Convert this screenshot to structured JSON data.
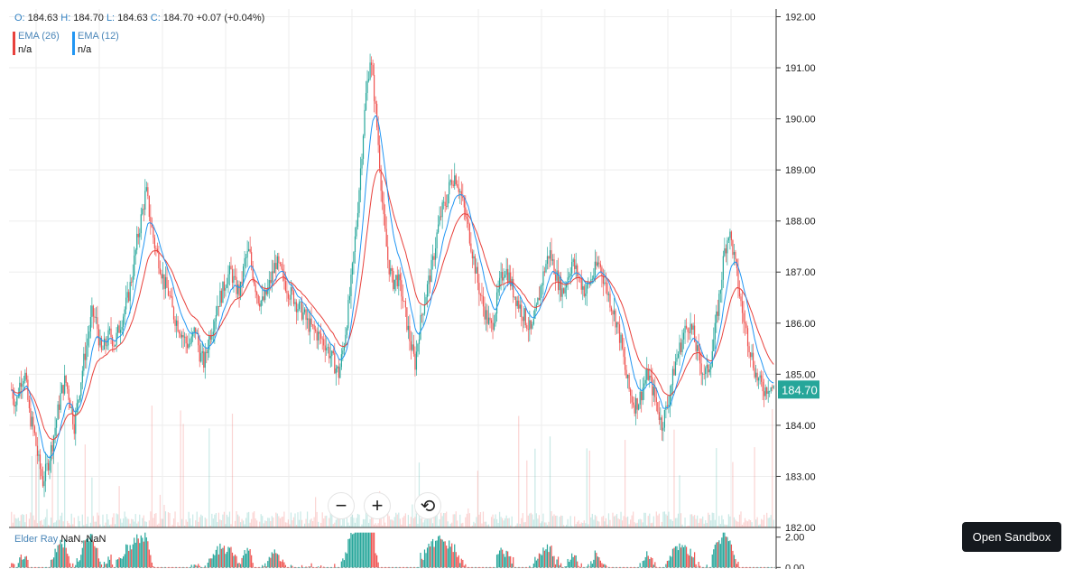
{
  "ohlc": {
    "o_label": "O:",
    "o_value": "184.63",
    "h_label": "H:",
    "h_value": "184.70",
    "l_label": "L:",
    "l_value": "184.63",
    "c_label": "C:",
    "c_value": "184.70",
    "change": "+0.07 (+0.04%)"
  },
  "legend": [
    {
      "name": "EMA (26)",
      "value": "n/a",
      "color": "#e8413c"
    },
    {
      "name": "EMA (12)",
      "value": "n/a",
      "color": "#2196f3"
    }
  ],
  "elder_ray": {
    "name": "Elder Ray",
    "value": "NaN, NaN"
  },
  "controls": {
    "zoom_out": "−",
    "zoom_in": "+",
    "reset": "⟲"
  },
  "sandbox_button": "Open Sandbox",
  "colors": {
    "up": "#26a69a",
    "down": "#ef5350",
    "ema26": "#e8413c",
    "ema12": "#2196f3",
    "last_price_bg": "#26a69a"
  },
  "chart_data": {
    "type": "candlestick",
    "price_axis": {
      "ticks": [
        "192.00",
        "191.00",
        "190.00",
        "189.00",
        "188.00",
        "187.00",
        "186.00",
        "185.00",
        "184.00",
        "183.00",
        "182.00"
      ],
      "range": [
        182,
        192.15
      ]
    },
    "elder_axis": {
      "ticks": [
        "2.00",
        "0.00"
      ],
      "range": [
        -0.1,
        2.4
      ]
    },
    "last_price": "184.70",
    "closes": [
      184.7,
      184.4,
      184.9,
      185.0,
      184.2,
      183.9,
      183.3,
      182.9,
      183.2,
      183.6,
      184.1,
      184.6,
      184.9,
      184.5,
      184.0,
      184.6,
      185.2,
      185.7,
      186.2,
      186.0,
      185.4,
      185.6,
      185.8,
      185.6,
      185.9,
      186.2,
      186.5,
      187.0,
      187.6,
      188.1,
      188.6,
      188.0,
      187.5,
      187.2,
      186.8,
      186.6,
      186.2,
      186.0,
      185.8,
      185.6,
      185.6,
      185.9,
      185.4,
      185.2,
      185.7,
      186.0,
      186.4,
      186.6,
      186.9,
      187.0,
      186.7,
      186.6,
      187.2,
      187.4,
      186.9,
      186.5,
      186.4,
      186.6,
      186.9,
      187.2,
      187.0,
      186.8,
      186.6,
      186.5,
      186.3,
      186.2,
      186.0,
      185.9,
      185.8,
      185.7,
      185.6,
      185.4,
      185.2,
      185.0,
      185.5,
      186.2,
      187.0,
      188.0,
      189.2,
      190.4,
      191.2,
      190.4,
      189.3,
      188.0,
      187.2,
      186.8,
      186.9,
      186.6,
      186.1,
      185.6,
      185.2,
      185.9,
      186.4,
      186.8,
      187.2,
      187.8,
      188.2,
      188.4,
      188.8,
      188.9,
      188.6,
      188.2,
      187.8,
      187.3,
      186.8,
      186.4,
      186.1,
      185.9,
      186.3,
      186.8,
      187.1,
      186.9,
      186.6,
      186.4,
      186.2,
      186.0,
      185.8,
      186.2,
      186.7,
      187.1,
      187.4,
      187.1,
      186.8,
      186.6,
      186.9,
      187.2,
      187.0,
      186.8,
      186.6,
      186.8,
      187.0,
      187.2,
      186.9,
      186.6,
      186.3,
      186.0,
      185.6,
      185.0,
      184.6,
      184.4,
      184.5,
      184.8,
      185.0,
      184.7,
      184.4,
      184.0,
      184.3,
      184.7,
      185.2,
      185.5,
      185.8,
      186.0,
      185.8,
      185.4,
      185.1,
      185.0,
      185.3,
      185.9,
      186.6,
      187.4,
      187.8,
      187.4,
      186.8,
      186.2,
      185.8,
      185.4,
      185.0,
      184.8,
      184.7,
      184.8,
      184.7
    ],
    "volume_note": "faint volume bars along bottom of price pane",
    "elder_ray_note": "bull/bear power histogram around zero line"
  }
}
